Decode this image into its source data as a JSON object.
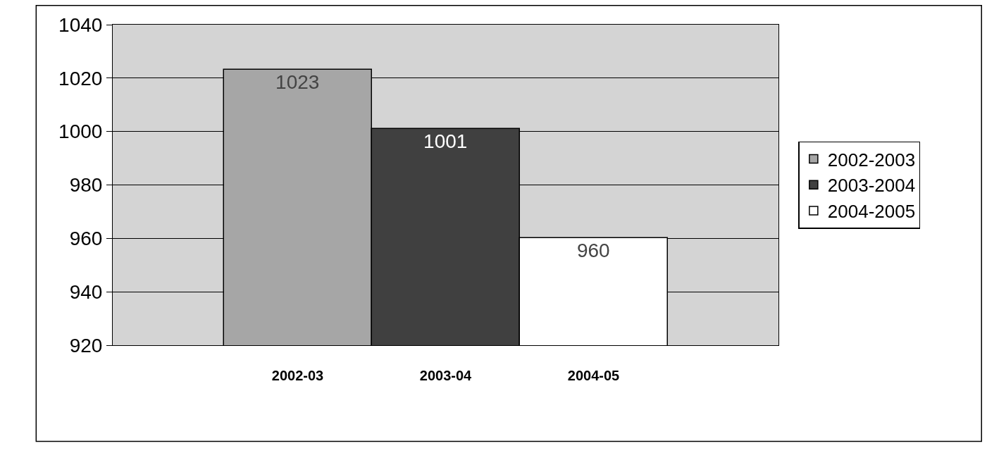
{
  "chart_data": {
    "type": "bar",
    "categories": [
      "2002-03",
      "2003-04",
      "2004-05"
    ],
    "series": [
      {
        "name": "2002-2003",
        "color": "#a6a6a6",
        "values": [
          1023,
          null,
          null
        ]
      },
      {
        "name": "2003-2004",
        "color": "#404040",
        "values": [
          null,
          1001,
          null
        ]
      },
      {
        "name": "2004-2005",
        "color": "#ffffff",
        "values": [
          null,
          null,
          960
        ]
      }
    ],
    "ylim": [
      920,
      1040
    ],
    "yticks": [
      920,
      940,
      960,
      980,
      1000,
      1020,
      1040
    ],
    "grid": "y",
    "legend": "right",
    "data_labels": true
  }
}
